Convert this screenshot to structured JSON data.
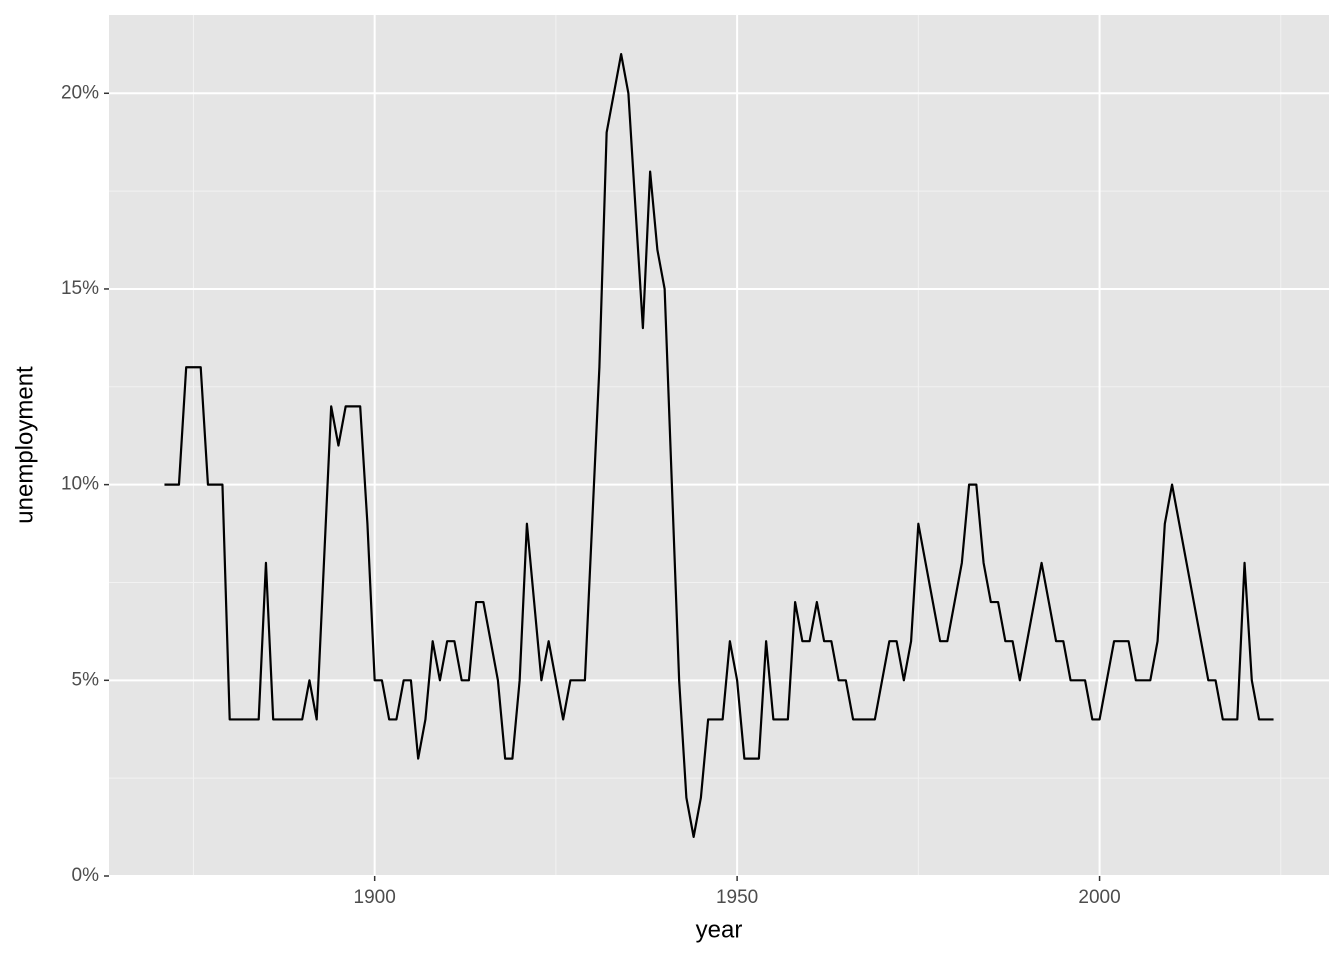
{
  "chart_data": {
    "type": "line",
    "x_label": "year",
    "y_label": "unemployment",
    "x": [
      1871,
      1872,
      1873,
      1874,
      1875,
      1876,
      1877,
      1878,
      1879,
      1880,
      1881,
      1882,
      1883,
      1884,
      1885,
      1886,
      1887,
      1888,
      1889,
      1890,
      1891,
      1892,
      1893,
      1894,
      1895,
      1896,
      1897,
      1898,
      1899,
      1900,
      1901,
      1902,
      1903,
      1904,
      1905,
      1906,
      1907,
      1908,
      1909,
      1910,
      1911,
      1912,
      1913,
      1914,
      1915,
      1916,
      1917,
      1918,
      1919,
      1920,
      1921,
      1922,
      1923,
      1924,
      1925,
      1926,
      1927,
      1928,
      1929,
      1930,
      1931,
      1932,
      1933,
      1934,
      1935,
      1936,
      1937,
      1938,
      1939,
      1940,
      1941,
      1942,
      1943,
      1944,
      1945,
      1946,
      1947,
      1948,
      1949,
      1950,
      1951,
      1952,
      1953,
      1954,
      1955,
      1956,
      1957,
      1958,
      1959,
      1960,
      1961,
      1962,
      1963,
      1964,
      1965,
      1966,
      1967,
      1968,
      1969,
      1970,
      1971,
      1972,
      1973,
      1974,
      1975,
      1976,
      1977,
      1978,
      1979,
      1980,
      1981,
      1982,
      1983,
      1984,
      1985,
      1986,
      1987,
      1988,
      1989,
      1990,
      1991,
      1992,
      1993,
      1994,
      1995,
      1996,
      1997,
      1998,
      1999,
      2000,
      2001,
      2002,
      2003,
      2004,
      2005,
      2006,
      2007,
      2008,
      2009,
      2010,
      2011,
      2012,
      2013,
      2014,
      2015,
      2016,
      2017,
      2018,
      2019,
      2020,
      2021,
      2022,
      2023,
      2024
    ],
    "values": [
      10,
      10,
      10,
      13,
      13,
      13,
      10,
      10,
      10,
      4,
      4,
      4,
      4,
      4,
      8,
      4,
      4,
      4,
      4,
      4,
      5,
      4,
      8,
      12,
      11,
      12,
      12,
      12,
      9,
      5,
      5,
      4,
      4,
      5,
      5,
      3,
      4,
      6,
      5,
      6,
      6,
      5,
      5,
      7,
      7,
      6,
      5,
      3,
      3,
      5,
      9,
      7,
      5,
      6,
      5,
      4,
      5,
      5,
      5,
      9,
      13,
      19,
      20,
      21,
      20,
      17,
      14,
      18,
      16,
      15,
      10,
      5,
      2,
      1,
      2,
      4,
      4,
      4,
      6,
      5,
      3,
      3,
      3,
      6,
      4,
      4,
      4,
      7,
      6,
      6,
      7,
      6,
      6,
      5,
      5,
      4,
      4,
      4,
      4,
      5,
      6,
      6,
      5,
      6,
      9,
      8,
      7,
      6,
      6,
      7,
      8,
      10,
      10,
      8,
      7,
      7,
      6,
      6,
      5,
      6,
      7,
      8,
      7,
      6,
      6,
      5,
      5,
      5,
      4,
      4,
      5,
      6,
      6,
      6,
      5,
      5,
      5,
      6,
      9,
      10,
      9,
      8,
      7,
      6,
      5,
      5,
      4,
      4,
      4,
      8,
      5,
      4,
      4,
      4
    ],
    "color": "#000000",
    "xlim": [
      1863.35,
      2031.65
    ],
    "xticks": [
      1900,
      1950,
      2000
    ],
    "ylim": [
      0,
      22
    ],
    "yticks": [
      {
        "value": 0,
        "label": "0%"
      },
      {
        "value": 5,
        "label": "5%"
      },
      {
        "value": 10,
        "label": "10%"
      },
      {
        "value": 15,
        "label": "15%"
      },
      {
        "value": 20,
        "label": "20%"
      }
    ],
    "grid": true
  }
}
